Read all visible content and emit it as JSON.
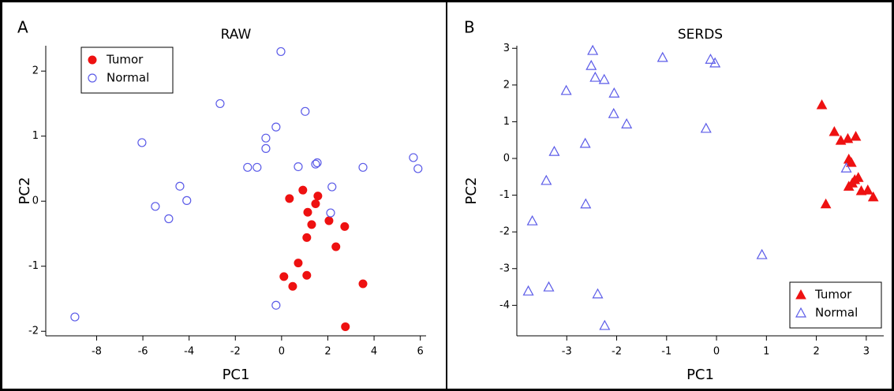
{
  "chart_data": [
    {
      "type": "scatter",
      "panel": "A",
      "title": "RAW",
      "xlabel": "PC1",
      "ylabel": "PC2",
      "xlim": [
        -10.2,
        6.25
      ],
      "ylim": [
        -2.07,
        2.39
      ],
      "xticks": [
        -8,
        -6,
        -4,
        -2,
        0,
        2,
        4,
        6
      ],
      "yticks": [
        -2,
        -1,
        0,
        1,
        2
      ],
      "legend": "upper left",
      "series": [
        {
          "name": "Tumor",
          "color": "#ee1111",
          "marker": "circle",
          "filled": true,
          "x": [
            0.34,
            0.92,
            1.57,
            1.47,
            1.13,
            1.3,
            2.05,
            2.73,
            1.09,
            2.35,
            0.72,
            1.09,
            0.1,
            0.48,
            3.52,
            2.76
          ],
          "values": [
            0.04,
            0.17,
            0.08,
            -0.04,
            -0.17,
            -0.36,
            -0.3,
            -0.39,
            -0.56,
            -0.7,
            -0.95,
            -1.14,
            -1.16,
            -1.31,
            -1.27,
            -1.93
          ]
        },
        {
          "name": "Normal",
          "color": "#5b5be8",
          "marker": "circle",
          "filled": false,
          "x": [
            -8.94,
            -0.03,
            -2.66,
            -6.04,
            -0.24,
            1.02,
            -0.68,
            -0.68,
            -1.47,
            -1.06,
            0.72,
            1.47,
            1.54,
            3.52,
            5.7,
            5.9,
            -4.4,
            -4.1,
            -5.46,
            -4.88,
            2.18,
            2.12,
            -0.24
          ],
          "values": [
            -1.78,
            2.3,
            1.5,
            0.9,
            1.14,
            1.38,
            0.97,
            0.81,
            0.52,
            0.52,
            0.53,
            0.57,
            0.59,
            0.52,
            0.67,
            0.5,
            0.23,
            0.01,
            -0.08,
            -0.27,
            0.22,
            -0.18,
            -1.6
          ]
        }
      ]
    },
    {
      "type": "scatter",
      "panel": "B",
      "title": "SERDS",
      "xlabel": "PC1",
      "ylabel": "PC2",
      "xlim": [
        -4.0,
        3.35
      ],
      "ylim": [
        -4.83,
        3.07
      ],
      "xticks": [
        -3,
        -2,
        -1,
        0,
        1,
        2,
        3
      ],
      "yticks": [
        -4,
        -3,
        -2,
        -1,
        0,
        1,
        2,
        3
      ],
      "legend": "lower right",
      "series": [
        {
          "name": "Tumor",
          "color": "#ee1111",
          "marker": "triangle",
          "filled": true,
          "x": [
            2.11,
            2.19,
            2.36,
            2.49,
            2.63,
            2.79,
            2.65,
            2.7,
            2.72,
            2.77,
            2.84,
            2.9,
            3.03,
            3.14,
            2.65
          ],
          "values": [
            1.46,
            -1.24,
            0.73,
            0.49,
            0.54,
            0.6,
            -0.02,
            -0.11,
            -0.67,
            -0.58,
            -0.52,
            -0.88,
            -0.86,
            -1.05,
            -0.76
          ]
        },
        {
          "name": "Normal",
          "color": "#5b5be8",
          "marker": "triangle",
          "filled": false,
          "x": [
            -2.48,
            -2.51,
            -2.43,
            -2.25,
            -2.05,
            -3.01,
            -2.06,
            -1.8,
            -1.08,
            -0.12,
            -0.03,
            -0.21,
            -3.25,
            -2.63,
            -3.41,
            -2.62,
            -3.69,
            0.91,
            -3.77,
            -3.36,
            -2.38,
            -2.24,
            2.6
          ],
          "values": [
            2.94,
            2.53,
            2.21,
            2.15,
            1.78,
            1.85,
            1.22,
            0.94,
            2.75,
            2.7,
            2.6,
            0.82,
            0.19,
            0.41,
            -0.6,
            -1.24,
            -1.7,
            -2.62,
            -3.61,
            -3.5,
            -3.69,
            -4.55,
            -0.26
          ]
        }
      ]
    }
  ]
}
